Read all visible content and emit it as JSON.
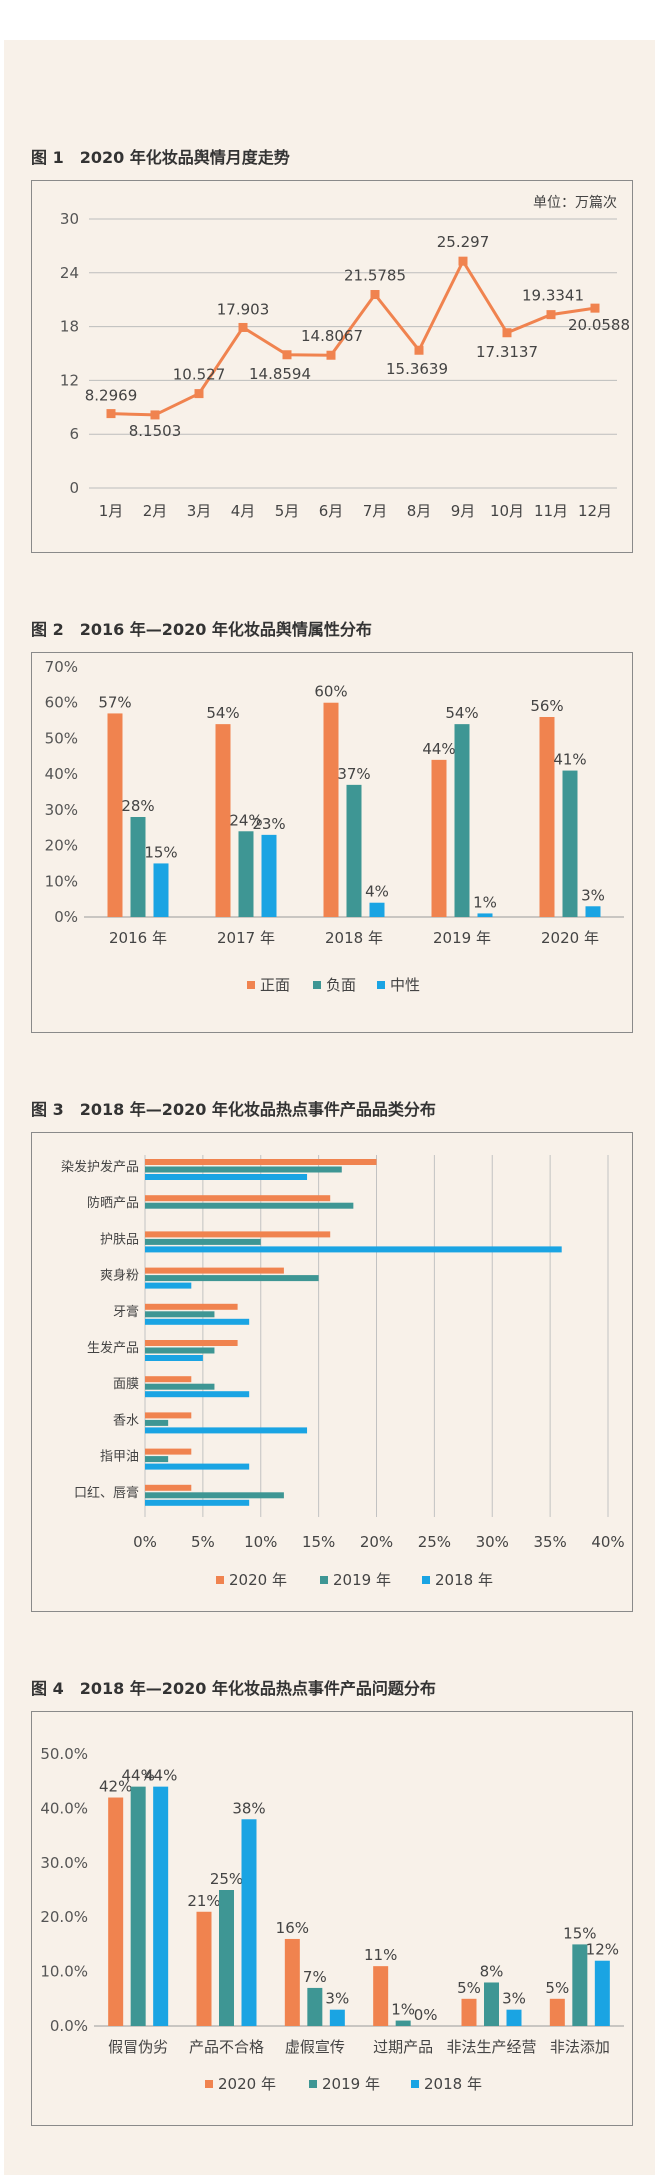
{
  "figures": [
    {
      "title": "图 1　2020 年化妆品舆情月度走势",
      "chart_data": {
        "type": "line",
        "unit_label": "单位：万篇次",
        "categories": [
          "1月",
          "2月",
          "3月",
          "4月",
          "5月",
          "6月",
          "7月",
          "8月",
          "9月",
          "10月",
          "11月",
          "12月"
        ],
        "series": [
          {
            "values": [
              8.2969,
              8.1503,
              10.527,
              17.903,
              14.8594,
              14.8067,
              21.5785,
              15.3639,
              25.297,
              17.3137,
              19.3341,
              20.0588
            ]
          }
        ],
        "data_labels": [
          "8.2969",
          "8.1503",
          "10.527",
          "17.903",
          "14.8594",
          "14.8067",
          "21.5785",
          "15.3639",
          "25.297",
          "17.3137",
          "19.3341",
          "20.0588"
        ],
        "yticks": [
          "0",
          "6",
          "12",
          "18",
          "24",
          "30"
        ],
        "ylim": [
          0,
          30
        ],
        "grid": true,
        "colors": [
          "#f0834f"
        ]
      }
    },
    {
      "title": "图 2　2016 年—2020 年化妆品舆情属性分布",
      "chart_data": {
        "type": "bar",
        "categories": [
          "2016 年",
          "2017 年",
          "2018 年",
          "2019 年",
          "2020 年"
        ],
        "series": [
          {
            "name": "正面",
            "values": [
              57,
              54,
              60,
              44,
              56
            ],
            "labels": [
              "57%",
              "54%",
              "60%",
              "44%",
              "56%"
            ]
          },
          {
            "name": "负面",
            "values": [
              28,
              24,
              37,
              54,
              41
            ],
            "labels": [
              "28%",
              "24%",
              "37%",
              "54%",
              "41%"
            ]
          },
          {
            "name": "中性",
            "values": [
              15,
              23,
              4,
              1,
              3
            ],
            "labels": [
              "15%",
              "23%",
              "4%",
              "1%",
              "3%"
            ]
          }
        ],
        "yticks": [
          "0%",
          "10%",
          "20%",
          "30%",
          "40%",
          "50%",
          "60%",
          "70%"
        ],
        "ylim": [
          0,
          70
        ],
        "grid": false,
        "legend": "bottom",
        "colors": [
          "#f0834f",
          "#3e9694",
          "#1aa4e3"
        ]
      }
    },
    {
      "title": "图 3　2018 年—2020 年化妆品热点事件产品品类分布",
      "chart_data": {
        "type": "bar",
        "orientation": "horizontal",
        "categories": [
          "染发护发产品",
          "防晒产品",
          "护肤品",
          "爽身粉",
          "牙膏",
          "生发产品",
          "面膜",
          "香水",
          "指甲油",
          "口红、唇膏"
        ],
        "series": [
          {
            "name": "2020 年",
            "values": [
              20,
              16,
              16,
              12,
              8,
              8,
              4,
              4,
              4,
              4
            ]
          },
          {
            "name": "2019 年",
            "values": [
              17,
              18,
              10,
              15,
              6,
              6,
              6,
              2,
              2,
              12
            ]
          },
          {
            "name": "2018 年",
            "values": [
              14,
              0,
              36,
              4,
              9,
              5,
              9,
              14,
              9,
              9
            ]
          }
        ],
        "xticks": [
          "0%",
          "5%",
          "10%",
          "15%",
          "20%",
          "25%",
          "30%",
          "35%",
          "40%"
        ],
        "xlim": [
          0,
          40
        ],
        "grid": true,
        "legend": "bottom",
        "colors": [
          "#f0834f",
          "#3e9694",
          "#1aa4e3"
        ]
      }
    },
    {
      "title": "图 4　2018 年—2020 年化妆品热点事件产品问题分布",
      "chart_data": {
        "type": "bar",
        "categories": [
          "假冒伪劣",
          "产品不合格",
          "虚假宣传",
          "过期产品",
          "非法生产经营",
          "非法添加"
        ],
        "series": [
          {
            "name": "2020 年",
            "values": [
              42,
              21,
              16,
              11,
              5,
              5
            ],
            "labels": [
              "42%",
              "21%",
              "16%",
              "11%",
              "5%",
              "5%"
            ]
          },
          {
            "name": "2019 年",
            "values": [
              44,
              25,
              7,
              1,
              8,
              15
            ],
            "labels": [
              "44%",
              "25%",
              "7%",
              "1%",
              "8%",
              "15%"
            ]
          },
          {
            "name": "2018 年",
            "values": [
              44,
              38,
              3,
              0,
              3,
              12
            ],
            "labels": [
              "44%",
              "38%",
              "3%",
              "0%",
              "3%",
              "12%"
            ]
          }
        ],
        "yticks": [
          "0.0%",
          "10.0%",
          "20.0%",
          "30.0%",
          "40.0%",
          "50.0%"
        ],
        "ylim": [
          0,
          50
        ],
        "grid": false,
        "legend": "bottom",
        "colors": [
          "#f0834f",
          "#3e9694",
          "#1aa4e3"
        ]
      }
    }
  ]
}
